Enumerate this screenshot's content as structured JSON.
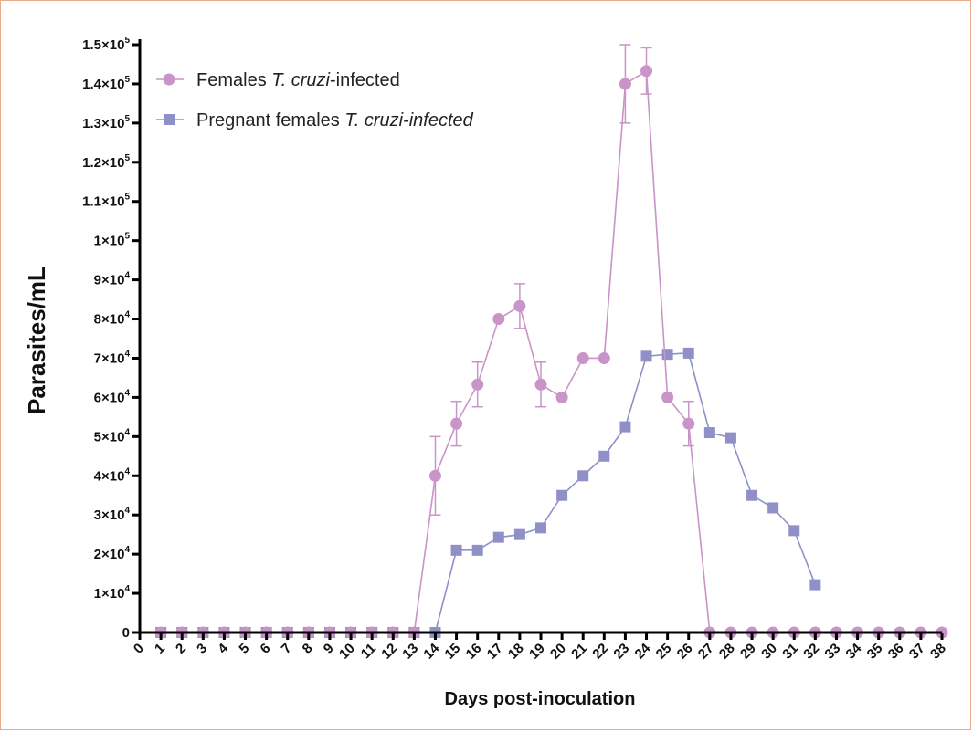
{
  "chart_data": {
    "type": "line",
    "title": "",
    "xlabel": "Days post-inoculation",
    "ylabel": "Parasites/mL",
    "xlim": [
      0,
      38
    ],
    "ylim": [
      0,
      150000
    ],
    "x_ticks": [
      0,
      1,
      2,
      3,
      4,
      5,
      6,
      7,
      8,
      9,
      10,
      11,
      12,
      13,
      14,
      15,
      16,
      17,
      18,
      19,
      20,
      21,
      22,
      23,
      24,
      25,
      26,
      27,
      28,
      29,
      30,
      31,
      32,
      33,
      34,
      35,
      36,
      37,
      38
    ],
    "x_tick_labels": [
      "0",
      "1",
      "2",
      "3",
      "4",
      "5",
      "6",
      "7",
      "8",
      "9",
      "10",
      "11",
      "12",
      "13",
      "14",
      "15",
      "16",
      "17",
      "18",
      "19",
      "20",
      "21",
      "22",
      "23",
      "24",
      "25",
      "26",
      "27",
      "28",
      "29",
      "30",
      "31",
      "32",
      "33",
      "34",
      "35",
      "36",
      "37",
      "38"
    ],
    "y_ticks": [
      {
        "value": 0,
        "mantissa": "0",
        "exp": ""
      },
      {
        "value": 10000,
        "mantissa": "1×10",
        "exp": "4"
      },
      {
        "value": 20000,
        "mantissa": "2×10",
        "exp": "4"
      },
      {
        "value": 30000,
        "mantissa": "3×10",
        "exp": "4"
      },
      {
        "value": 40000,
        "mantissa": "4×10",
        "exp": "4"
      },
      {
        "value": 50000,
        "mantissa": "5×10",
        "exp": "4"
      },
      {
        "value": 60000,
        "mantissa": "6×10",
        "exp": "4"
      },
      {
        "value": 70000,
        "mantissa": "7×10",
        "exp": "4"
      },
      {
        "value": 80000,
        "mantissa": "8×10",
        "exp": "4"
      },
      {
        "value": 90000,
        "mantissa": "9×10",
        "exp": "4"
      },
      {
        "value": 100000,
        "mantissa": "1×10",
        "exp": "5"
      },
      {
        "value": 110000,
        "mantissa": "1.1×10",
        "exp": "5"
      },
      {
        "value": 120000,
        "mantissa": "1.2×10",
        "exp": "5"
      },
      {
        "value": 130000,
        "mantissa": "1.3×10",
        "exp": "5"
      },
      {
        "value": 140000,
        "mantissa": "1.4×10",
        "exp": "5"
      },
      {
        "value": 150000,
        "mantissa": "1.5×10",
        "exp": "5"
      }
    ],
    "legend_position": "top-left",
    "series": [
      {
        "name": "Females T. cruzi-infected",
        "legend_parts": [
          {
            "text": "Females ",
            "italic": false
          },
          {
            "text": "T. cruzi",
            "italic": true
          },
          {
            "text": "-infected",
            "italic": false
          }
        ],
        "marker": "circle",
        "color": "#c994c7",
        "x": [
          1,
          2,
          3,
          4,
          5,
          6,
          7,
          8,
          9,
          10,
          11,
          12,
          13,
          14,
          15,
          16,
          17,
          18,
          19,
          20,
          21,
          22,
          23,
          24,
          25,
          26,
          27,
          28,
          29,
          30,
          31,
          32,
          33,
          34,
          35,
          36,
          37,
          38
        ],
        "values": [
          0,
          0,
          0,
          0,
          0,
          0,
          0,
          0,
          0,
          0,
          0,
          0,
          0,
          40000,
          53300,
          63300,
          80000,
          83300,
          63300,
          60000,
          70000,
          70000,
          140000,
          143300,
          60000,
          53300,
          0,
          0,
          0,
          0,
          0,
          0,
          0,
          0,
          0,
          0,
          0,
          0
        ],
        "error": [
          0,
          0,
          0,
          0,
          0,
          0,
          0,
          0,
          0,
          0,
          0,
          0,
          0,
          10000,
          5700,
          5700,
          0,
          5700,
          5700,
          0,
          0,
          0,
          10000,
          5900,
          0,
          5700,
          0,
          0,
          0,
          0,
          0,
          0,
          0,
          0,
          0,
          0,
          0,
          0
        ]
      },
      {
        "name": "Pregnant females T. cruzi-infected",
        "legend_parts": [
          {
            "text": "Pregnant females ",
            "italic": false
          },
          {
            "text": "T. cruzi-infected",
            "italic": true
          }
        ],
        "marker": "square",
        "color": "#9090c8",
        "x": [
          1,
          2,
          3,
          4,
          5,
          6,
          7,
          8,
          9,
          10,
          11,
          12,
          13,
          14,
          15,
          16,
          17,
          18,
          19,
          20,
          21,
          22,
          23,
          24,
          25,
          26,
          27,
          28,
          29,
          30,
          31,
          32
        ],
        "values": [
          0,
          0,
          0,
          0,
          0,
          0,
          0,
          0,
          0,
          0,
          0,
          0,
          0,
          0,
          21000,
          21000,
          24300,
          25000,
          26700,
          35000,
          40000,
          45000,
          52500,
          70500,
          71000,
          71300,
          51000,
          49700,
          35000,
          31800,
          26000,
          12200
        ],
        "error": [
          0,
          0,
          0,
          0,
          0,
          0,
          0,
          0,
          0,
          0,
          0,
          0,
          0,
          0,
          0,
          0,
          0,
          0,
          0,
          0,
          0,
          0,
          0,
          0,
          0,
          0,
          0,
          0,
          0,
          0,
          0,
          0
        ]
      }
    ]
  }
}
